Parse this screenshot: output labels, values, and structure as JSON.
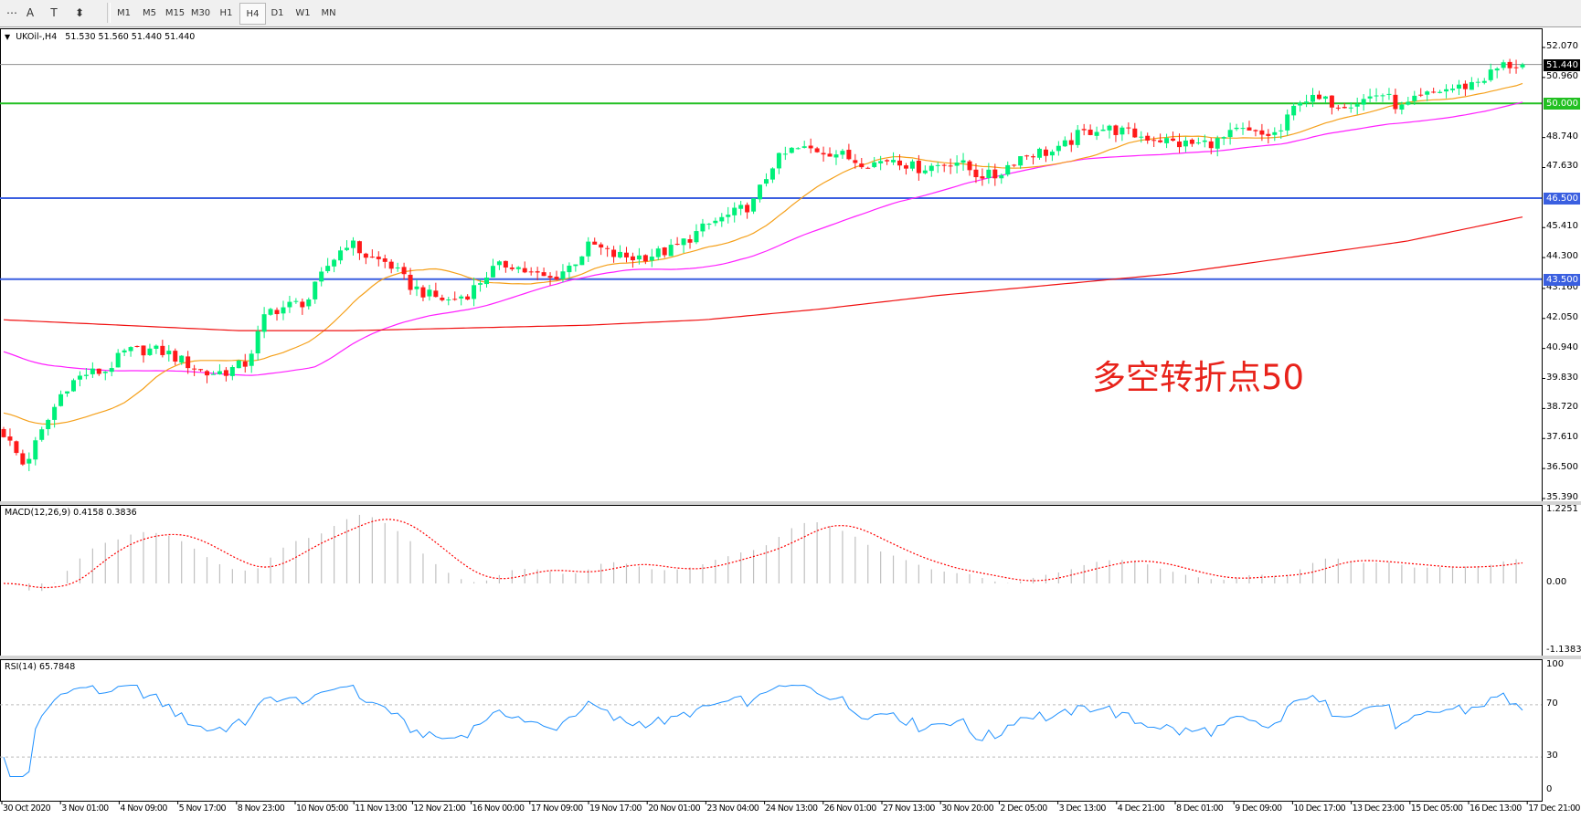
{
  "toolbar": {
    "tools": [
      {
        "name": "grid-tool-icon",
        "glyph": "⋯"
      },
      {
        "name": "text-tool-icon",
        "glyph": "A"
      },
      {
        "name": "text-label-tool-icon",
        "glyph": "T"
      },
      {
        "name": "arrows-tool-icon",
        "glyph": "⬍"
      }
    ],
    "timeframes": [
      "M1",
      "M5",
      "M15",
      "M30",
      "H1",
      "H4",
      "D1",
      "W1",
      "MN"
    ],
    "active_timeframe": "H4"
  },
  "main_chart": {
    "symbol_label": "UKOil-,H4",
    "ohlc": "51.530 51.560 51.440 51.440",
    "price_ticks": [
      "52.070",
      "50.960",
      "48.740",
      "47.630",
      "45.410",
      "44.300",
      "43.160",
      "42.050",
      "40.940",
      "39.830",
      "38.720",
      "37.610",
      "36.500",
      "35.390"
    ],
    "current_price": "51.440",
    "levels": [
      {
        "value": "50.000",
        "color": "#22c022"
      },
      {
        "value": "46.500",
        "color": "#3a5fe0"
      },
      {
        "value": "43.500",
        "color": "#3a5fe0"
      }
    ],
    "annotation": "多空转折点50"
  },
  "macd": {
    "label": "MACD(12,26,9) 0.4158 0.3836",
    "ticks": [
      "1.2251",
      "0.00",
      "-1.1383"
    ]
  },
  "rsi": {
    "label": "RSI(14) 65.7848",
    "ticks": [
      "100",
      "70",
      "30",
      "0"
    ]
  },
  "time_axis": [
    "30 Oct 2020",
    "3 Nov 01:00",
    "4 Nov 09:00",
    "5 Nov 17:00",
    "8 Nov 23:00",
    "10 Nov 05:00",
    "11 Nov 13:00",
    "12 Nov 21:00",
    "16 Nov 00:00",
    "17 Nov 09:00",
    "19 Nov 17:00",
    "20 Nov 01:00",
    "23 Nov 04:00",
    "24 Nov 13:00",
    "26 Nov 01:00",
    "27 Nov 13:00",
    "30 Nov 20:00",
    "2 Dec 05:00",
    "3 Dec 13:00",
    "4 Dec 21:00",
    "8 Dec 01:00",
    "9 Dec 09:00",
    "10 Dec 17:00",
    "13 Dec 23:00",
    "15 Dec 05:00",
    "16 Dec 13:00",
    "17 Dec 21:00"
  ],
  "chart_data": {
    "type": "candlestick",
    "ylim": [
      35.39,
      52.07
    ],
    "close_path": [
      37.8,
      36.6,
      38.0,
      39.5,
      40.0,
      40.1,
      40.8,
      40.9,
      40.8,
      40.4,
      40.0,
      40.1,
      40.4,
      42.3,
      42.5,
      42.7,
      44.0,
      44.9,
      44.3,
      44.1,
      43.3,
      42.9,
      42.7,
      43.0,
      43.8,
      44.1,
      43.7,
      43.5,
      44.0,
      44.8,
      44.4,
      44.3,
      44.4,
      44.6,
      45.1,
      45.6,
      45.9,
      46.3,
      47.8,
      48.3,
      48.3,
      48.2,
      47.9,
      47.8,
      48.0,
      47.6,
      47.7,
      47.9,
      47.4,
      47.3,
      48.0,
      48.2,
      48.2,
      48.8,
      49.1,
      49.0,
      48.8,
      48.7,
      48.5,
      48.5,
      48.6,
      49.0,
      48.8,
      48.9,
      50.2,
      50.1,
      50.0,
      50.1,
      50.4,
      49.8,
      50.2,
      50.5,
      50.6,
      50.9,
      51.4,
      51.44
    ],
    "ma_long": [
      42.0,
      41.8,
      41.6,
      41.6,
      41.7,
      41.8,
      42.0,
      42.4,
      42.9,
      43.3,
      43.7,
      44.3,
      44.9,
      45.8
    ],
    "colors": {
      "bull": "#00f07a",
      "bear": "#ff1a1a",
      "ma_fast": "#f5a01a",
      "ma_mid": "#ff20ff",
      "ma_long": "#f01010",
      "macd_hist": "#c0c0c0",
      "macd_signal": "#ff0000",
      "rsi": "#1e90ff"
    },
    "macd_range": [
      -1.1383,
      1.2251
    ],
    "rsi_levels": [
      30,
      70
    ]
  }
}
